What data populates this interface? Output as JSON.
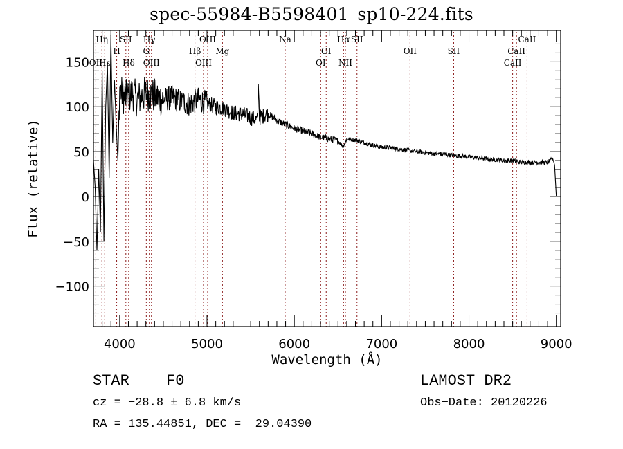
{
  "chart_data": {
    "type": "line",
    "title": "spec-55984-B5598401_sp10-224.fits",
    "xlabel": "Wavelength (Å)",
    "ylabel": "Flux (relative)",
    "xlim": [
      3700,
      9050
    ],
    "ylim": [
      -145,
      185
    ],
    "grid": false,
    "x_ticks": [
      4000,
      5000,
      6000,
      7000,
      8000,
      9000
    ],
    "x_tick_labels": [
      "4000",
      "5000",
      "6000",
      "7000",
      "8000",
      "9000"
    ],
    "x_minor_step": 100,
    "y_ticks": [
      -100,
      -50,
      0,
      50,
      100,
      150
    ],
    "y_tick_labels": [
      "−100",
      "−50",
      "0",
      "50",
      "100",
      "150"
    ],
    "y_minor_step": 10,
    "series": [
      {
        "name": "spectrum",
        "color": "#000000",
        "envelope": {
          "x": [
            3700,
            3720,
            3740,
            3760,
            3780,
            3800,
            3820,
            3840,
            3860,
            3880,
            3900,
            3920,
            3940,
            3960,
            3980,
            4000,
            4050,
            4100,
            4150,
            4200,
            4300,
            4400,
            4500,
            4600,
            4700,
            4800,
            4900,
            5000,
            5100,
            5200,
            5300,
            5400,
            5500,
            5580,
            5590,
            5600,
            5700,
            5800,
            5900,
            6000,
            6100,
            6200,
            6300,
            6400,
            6500,
            6560,
            6580,
            6600,
            6700,
            6800,
            6900,
            7000,
            7200,
            7400,
            7600,
            7800,
            8000,
            8200,
            8400,
            8500,
            8600,
            8700,
            8800,
            8900,
            8960,
            8980,
            9000
          ],
          "y": [
            40,
            10,
            -60,
            30,
            -40,
            140,
            -50,
            100,
            150,
            20,
            180,
            60,
            130,
            80,
            40,
            120,
            110,
            112,
            115,
            108,
            115,
            112,
            108,
            110,
            106,
            103,
            108,
            104,
            100,
            98,
            93,
            92,
            88,
            85,
            130,
            88,
            92,
            85,
            80,
            76,
            73,
            70,
            66,
            64,
            62,
            56,
            60,
            64,
            63,
            60,
            57,
            55,
            53,
            50,
            48,
            46,
            44,
            42,
            40,
            40,
            38,
            38,
            38,
            38,
            42,
            35,
            0
          ]
        },
        "noise_amplitude_note": "heavy noise below 4500 Å, decreasing redward"
      }
    ],
    "line_markers": [
      {
        "label": "Hη",
        "wavelength": 3797,
        "row": 1
      },
      {
        "label": "OII",
        "wavelength": 3727,
        "row": 3
      },
      {
        "label": "Hε",
        "wavelength": 3829,
        "row": 3
      },
      {
        "label": "H",
        "wavelength": 3966,
        "row": 2
      },
      {
        "label": "SII",
        "wavelength": 4071,
        "row": 1
      },
      {
        "label": "Hδ",
        "wavelength": 4103,
        "row": 3
      },
      {
        "label": "Hγ",
        "wavelength": 4340,
        "row": 1
      },
      {
        "label": "G",
        "wavelength": 4305,
        "row": 2
      },
      {
        "label": "OIII",
        "wavelength": 4364,
        "row": 3
      },
      {
        "label": "Hβ",
        "wavelength": 4862,
        "row": 2
      },
      {
        "label": "OIII",
        "wavelength": 4960,
        "row": 3
      },
      {
        "label": "OIII",
        "wavelength": 5008,
        "row": 1
      },
      {
        "label": "Mg",
        "wavelength": 5177,
        "row": 2
      },
      {
        "label": "Na",
        "wavelength": 5895,
        "row": 1
      },
      {
        "label": "OI",
        "wavelength": 6302,
        "row": 3
      },
      {
        "label": "OI",
        "wavelength": 6365,
        "row": 2
      },
      {
        "label": "Hα",
        "wavelength": 6564,
        "row": 1
      },
      {
        "label": "NII",
        "wavelength": 6585,
        "row": 3
      },
      {
        "label": "SII",
        "wavelength": 6718,
        "row": 1
      },
      {
        "label": "OII",
        "wavelength": 7325,
        "row": 2
      },
      {
        "label": "SII",
        "wavelength": 7825,
        "row": 2
      },
      {
        "label": "CaII",
        "wavelength": 8500,
        "row": 3
      },
      {
        "label": "CaII",
        "wavelength": 8544,
        "row": 2
      },
      {
        "label": "CaII",
        "wavelength": 8665,
        "row": 1
      }
    ],
    "line_marker_color": "#8b1a1a"
  },
  "info": {
    "object_class": "STAR",
    "subclass": "F0",
    "survey": "LAMOST DR2",
    "cz": "cz = −28.8 ± 6.8 km/s",
    "obs_date": "Obs−Date: 20120226",
    "coords": "RA = 135.44851, DEC =  29.04390"
  }
}
